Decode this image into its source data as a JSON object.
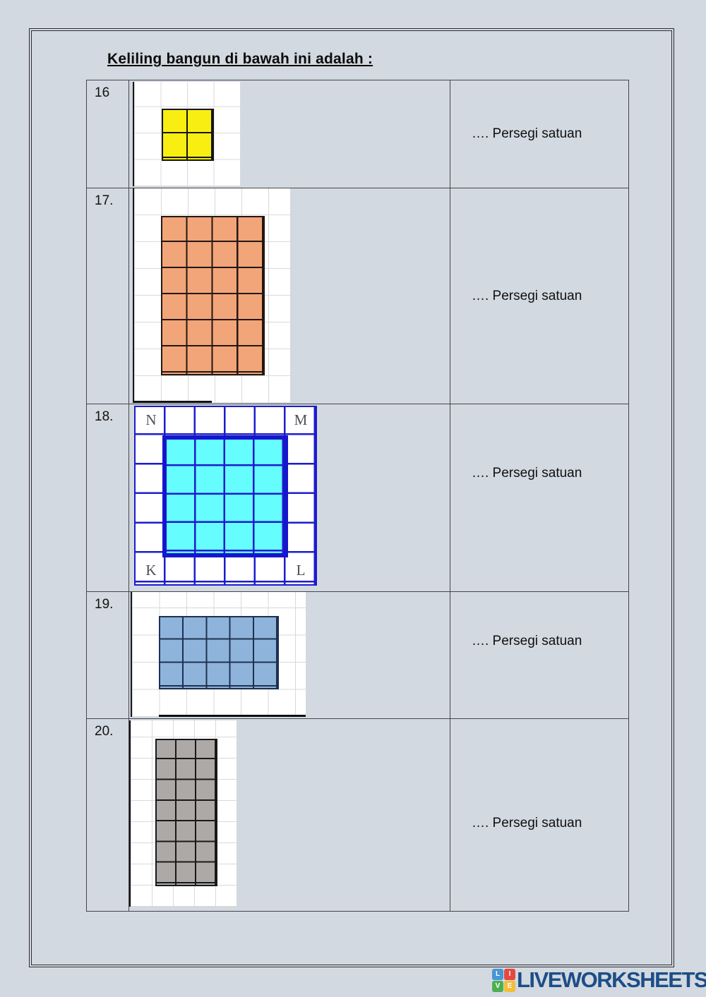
{
  "title": "Keliling bangun di bawah ini adalah :",
  "colors": {
    "page_bg": "#d3d9e0",
    "table_border": "#45454c",
    "yellow_fill": "#f8ee12",
    "orange_fill": "#f1a578",
    "cyan_fill": "#66fdfe",
    "cyan_border_blue": "#1616cd",
    "blue_fill": "#8fb4db",
    "gray_fill": "#ada9a6",
    "brand_blue": "#1d4d87"
  },
  "rows": [
    {
      "number": "16",
      "answer": "…. Persegi satuan",
      "shape": {
        "name": "yellow-square",
        "fill": "#f8ee12",
        "cols": 2,
        "rows": 2
      }
    },
    {
      "number": "17.",
      "answer": "…. Persegi satuan",
      "shape": {
        "name": "orange-rectangle",
        "fill": "#f1a578",
        "cols": 4,
        "rows": 6
      }
    },
    {
      "number": "18.",
      "answer": "…. Persegi satuan",
      "shape": {
        "name": "cyan-square",
        "fill": "#66fdfe",
        "cols": 4,
        "rows": 4,
        "corner_labels": {
          "top_left": "N",
          "top_right": "M",
          "bottom_left": "K",
          "bottom_right": "L"
        }
      }
    },
    {
      "number": "19.",
      "answer": "…. Persegi satuan",
      "shape": {
        "name": "blue-rectangle",
        "fill": "#8fb4db",
        "cols": 5,
        "rows": 3
      }
    },
    {
      "number": "20.",
      "answer": "…. Persegi satuan",
      "shape": {
        "name": "gray-rectangle",
        "fill": "#ada9a6",
        "cols": 3,
        "rows": 7
      }
    }
  ],
  "footer": {
    "brand": "LIVEWORKSHEETS",
    "logo_tiles": [
      {
        "letter": "L",
        "color": "#4796d6"
      },
      {
        "letter": "I",
        "color": "#e54840"
      },
      {
        "letter": "V",
        "color": "#4daf50"
      },
      {
        "letter": "E",
        "color": "#f4be37"
      }
    ]
  }
}
